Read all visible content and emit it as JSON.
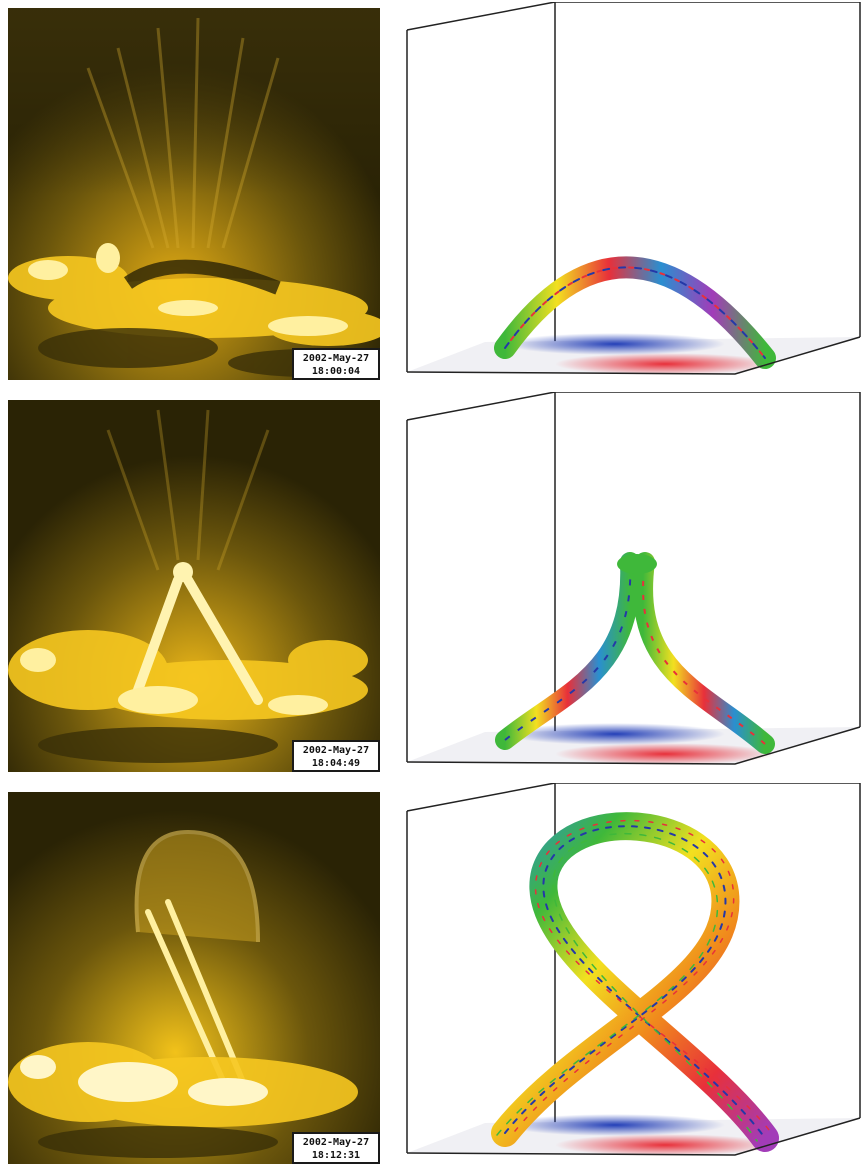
{
  "figure": {
    "rows": [
      {
        "observation": {
          "date": "2002-May-27",
          "time": "18:00:04",
          "phase": "arch"
        },
        "model": {
          "stage": "arch"
        }
      },
      {
        "observation": {
          "date": "2002-May-27",
          "time": "18:04:49",
          "phase": "rising"
        },
        "model": {
          "stage": "kinked"
        }
      },
      {
        "observation": {
          "date": "2002-May-27",
          "time": "18:12:31",
          "phase": "erupting"
        },
        "model": {
          "stage": "erupted"
        }
      }
    ],
    "colors": {
      "observation_background": "#2a2305",
      "observation_emission": "#f2c21a",
      "observation_bright": "#fff3b0",
      "positive_polarity": "#e8303a",
      "negative_polarity": "#2440b8",
      "flux_rope_palette": [
        "#e8303a",
        "#f08a1c",
        "#f2e020",
        "#3fb83a",
        "#2a8fd0",
        "#2438a8",
        "#a23cb8"
      ]
    }
  }
}
